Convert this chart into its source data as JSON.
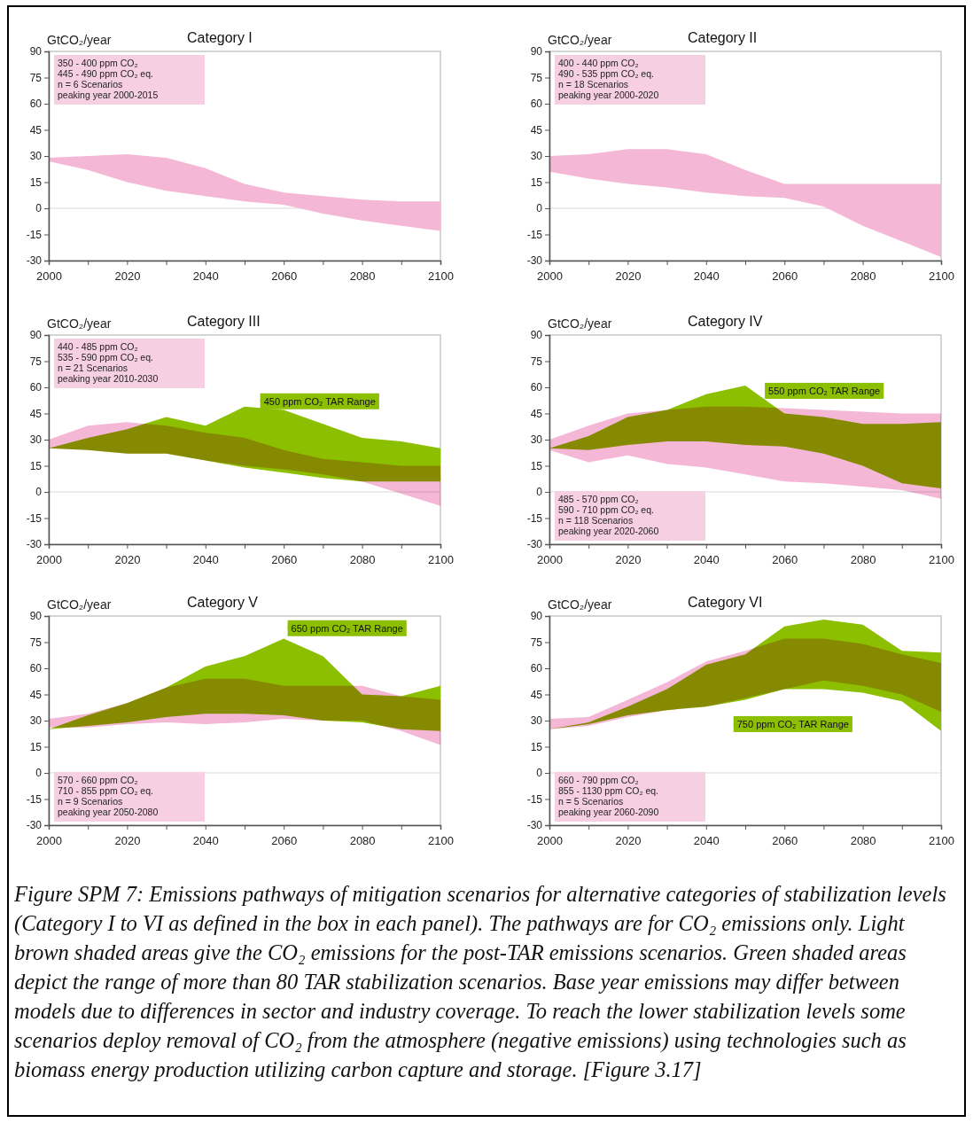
{
  "chart_data": [
    {
      "type": "area",
      "title": "Category I",
      "ylabel": "GtCO₂/year",
      "x": [
        2000,
        2010,
        2020,
        2030,
        2040,
        2050,
        2060,
        2070,
        2080,
        2090,
        2100
      ],
      "xlim": [
        2000,
        2100
      ],
      "xticks": [
        2000,
        {
          "value": 2010,
          "label": null
        },
        2020,
        {
          "value": 2030,
          "label": null
        },
        2040,
        {
          "value": 2050,
          "label": null
        },
        2060,
        {
          "value": 2070,
          "label": null
        },
        2080,
        {
          "value": 2090,
          "label": null
        },
        2100
      ],
      "ylim": [
        -30,
        90
      ],
      "yticks": [
        -30,
        -15,
        0,
        15,
        30,
        45,
        60,
        75,
        90
      ],
      "grid": false,
      "ref_lines": [
        {
          "axis": "y",
          "value": 0,
          "color": "#d9d9d9"
        }
      ],
      "annotations": [
        "350 - 400 ppm CO₂",
        "445 - 490 ppm CO₂ eq.",
        "n = 6 Scenarios",
        "peaking year 2000-2015"
      ],
      "series": [
        {
          "color": "#f4b8d6",
          "values": [
            null,
            null,
            null,
            null,
            null,
            null,
            null,
            null,
            null,
            null,
            null
          ],
          "upper": [
            29,
            30,
            31,
            29,
            23,
            14,
            9,
            7,
            5,
            4,
            4
          ],
          "lower": [
            27,
            22,
            15,
            10,
            7,
            4,
            2,
            -3,
            -7,
            -10,
            -13
          ]
        }
      ]
    },
    {
      "type": "area",
      "title": "Category II",
      "ylabel": "GtCO₂/year",
      "x": [
        2000,
        2010,
        2020,
        2030,
        2040,
        2050,
        2060,
        2070,
        2080,
        2090,
        2100
      ],
      "xlim": [
        2000,
        2100
      ],
      "xticks": [
        2000,
        {
          "value": 2010,
          "label": null
        },
        2020,
        {
          "value": 2030,
          "label": null
        },
        2040,
        {
          "value": 2050,
          "label": null
        },
        2060,
        {
          "value": 2070,
          "label": null
        },
        2080,
        {
          "value": 2090,
          "label": null
        },
        2100
      ],
      "ylim": [
        -30,
        90
      ],
      "yticks": [
        -30,
        -15,
        0,
        15,
        30,
        45,
        60,
        75,
        90
      ],
      "grid": false,
      "ref_lines": [
        {
          "axis": "y",
          "value": 0,
          "color": "#d9d9d9"
        }
      ],
      "annotations": [
        "400 - 440 ppm CO₂",
        "490 - 535 ppm CO₂ eq.",
        "n = 18 Scenarios",
        "peaking year 2000-2020"
      ],
      "series": [
        {
          "color": "#f4b8d6",
          "values": [
            null,
            null,
            null,
            null,
            null,
            null,
            null,
            null,
            null,
            null,
            null
          ],
          "upper": [
            30,
            31,
            34,
            34,
            31,
            22,
            14,
            14,
            14,
            14,
            14
          ],
          "lower": [
            21,
            17,
            14,
            12,
            9,
            7,
            6,
            1,
            -10,
            -19,
            -28
          ]
        }
      ]
    },
    {
      "type": "area",
      "title": "Category III",
      "ylabel": "GtCO₂/year",
      "x": [
        2000,
        2010,
        2020,
        2030,
        2040,
        2050,
        2060,
        2070,
        2080,
        2090,
        2100
      ],
      "xlim": [
        2000,
        2100
      ],
      "xticks": [
        2000,
        {
          "value": 2010,
          "label": null
        },
        2020,
        {
          "value": 2030,
          "label": null
        },
        2040,
        {
          "value": 2050,
          "label": null
        },
        2060,
        {
          "value": 2070,
          "label": null
        },
        2080,
        {
          "value": 2090,
          "label": null
        },
        2100
      ],
      "ylim": [
        -30,
        90
      ],
      "yticks": [
        -30,
        -15,
        0,
        15,
        30,
        45,
        60,
        75,
        90
      ],
      "grid": false,
      "ref_lines": [
        {
          "axis": "y",
          "value": 0,
          "color": "#d9d9d9"
        }
      ],
      "annotations": [
        "440 - 485 ppm CO₂",
        "535 - 590 ppm CO₂ eq.",
        "n = 21 Scenarios",
        "peaking year 2010-2030"
      ],
      "series": [
        {
          "color": "#f4b8d6",
          "values": [
            null,
            null,
            null,
            null,
            null,
            null,
            null,
            null,
            null,
            null,
            null
          ],
          "upper": [
            30,
            38,
            40,
            38,
            34,
            31,
            24,
            19,
            17,
            15,
            15
          ],
          "lower": [
            25,
            24,
            22,
            22,
            18,
            15,
            13,
            10,
            6,
            -1,
            -8
          ]
        },
        {
          "name": "450 ppm CO₂ TAR Range",
          "color": "#8cbf00",
          "values": [
            null,
            null,
            null,
            null,
            null,
            null,
            null,
            null,
            null,
            null,
            null
          ],
          "upper": [
            25,
            31,
            36,
            43,
            38,
            49,
            47,
            39,
            31,
            29,
            25
          ],
          "lower": [
            25,
            24,
            22,
            22,
            18,
            14,
            11,
            8,
            6,
            6,
            6
          ]
        }
      ]
    },
    {
      "type": "area",
      "title": "Category IV",
      "ylabel": "GtCO₂/year",
      "x": [
        2000,
        2010,
        2020,
        2030,
        2040,
        2050,
        2060,
        2070,
        2080,
        2090,
        2100
      ],
      "xlim": [
        2000,
        2100
      ],
      "xticks": [
        2000,
        {
          "value": 2010,
          "label": null
        },
        2020,
        {
          "value": 2030,
          "label": null
        },
        2040,
        {
          "value": 2050,
          "label": null
        },
        2060,
        {
          "value": 2070,
          "label": null
        },
        2080,
        {
          "value": 2090,
          "label": null
        },
        2100
      ],
      "ylim": [
        -30,
        90
      ],
      "yticks": [
        -30,
        -15,
        0,
        15,
        30,
        45,
        60,
        75,
        90
      ],
      "grid": false,
      "ref_lines": [
        {
          "axis": "y",
          "value": 0,
          "color": "#d9d9d9"
        }
      ],
      "annotations": [
        "485 - 570 ppm CO₂",
        "590 - 710 ppm CO₂ eq.",
        "n = 118 Scenarios",
        "peaking year 2020-2060"
      ],
      "series": [
        {
          "color": "#f4b8d6",
          "values": [
            null,
            null,
            null,
            null,
            null,
            null,
            null,
            null,
            null,
            null,
            null
          ],
          "upper": [
            30,
            38,
            45,
            47,
            49,
            49,
            48,
            47,
            46,
            45,
            45
          ],
          "lower": [
            24,
            17,
            21,
            16,
            14,
            10,
            6,
            5,
            3,
            1,
            -4
          ]
        },
        {
          "name": "550 ppm CO₂ TAR Range",
          "color": "#8cbf00",
          "values": [
            null,
            null,
            null,
            null,
            null,
            null,
            null,
            null,
            null,
            null,
            null
          ],
          "upper": [
            25,
            32,
            43,
            47,
            56,
            61,
            45,
            43,
            39,
            39,
            40
          ],
          "lower": [
            25,
            24,
            27,
            29,
            29,
            27,
            26,
            22,
            15,
            5,
            2
          ]
        }
      ]
    },
    {
      "type": "area",
      "title": "Category V",
      "ylabel": "GtCO₂/year",
      "x": [
        2000,
        2010,
        2020,
        2030,
        2040,
        2050,
        2060,
        2070,
        2080,
        2090,
        2100
      ],
      "xlim": [
        2000,
        2100
      ],
      "xticks": [
        2000,
        {
          "value": 2010,
          "label": null
        },
        2020,
        {
          "value": 2030,
          "label": null
        },
        2040,
        {
          "value": 2050,
          "label": null
        },
        2060,
        {
          "value": 2070,
          "label": null
        },
        2080,
        {
          "value": 2090,
          "label": null
        },
        2100
      ],
      "ylim": [
        -30,
        90
      ],
      "yticks": [
        -30,
        -15,
        0,
        15,
        30,
        45,
        60,
        75,
        90
      ],
      "grid": false,
      "ref_lines": [
        {
          "axis": "y",
          "value": 0,
          "color": "#d9d9d9"
        }
      ],
      "annotations": [
        "570 - 660 ppm CO₂",
        "710 - 855 ppm CO₂ eq.",
        "n = 9 Scenarios",
        "peaking year 2050-2080"
      ],
      "series": [
        {
          "color": "#f4b8d6",
          "values": [
            null,
            null,
            null,
            null,
            null,
            null,
            null,
            null,
            null,
            null,
            null
          ],
          "upper": [
            31,
            34,
            40,
            49,
            54,
            54,
            50,
            50,
            50,
            44,
            42
          ],
          "lower": [
            26,
            26,
            28,
            29,
            28,
            29,
            31,
            30,
            30,
            24,
            16
          ]
        },
        {
          "name": "650 ppm CO₂ TAR Range",
          "color": "#8cbf00",
          "values": [
            null,
            null,
            null,
            null,
            null,
            null,
            null,
            null,
            null,
            null,
            null
          ],
          "upper": [
            25,
            33,
            40,
            49,
            61,
            67,
            77,
            67,
            45,
            44,
            50
          ],
          "lower": [
            25,
            27,
            29,
            32,
            34,
            34,
            33,
            30,
            29,
            25,
            24
          ]
        }
      ]
    },
    {
      "type": "area",
      "title": "Category VI",
      "ylabel": "GtCO₂/year",
      "x": [
        2000,
        2010,
        2020,
        2030,
        2040,
        2050,
        2060,
        2070,
        2080,
        2090,
        2100
      ],
      "xlim": [
        2000,
        2100
      ],
      "xticks": [
        2000,
        {
          "value": 2010,
          "label": null
        },
        2020,
        {
          "value": 2030,
          "label": null
        },
        2040,
        {
          "value": 2050,
          "label": null
        },
        2060,
        {
          "value": 2070,
          "label": null
        },
        2080,
        {
          "value": 2090,
          "label": null
        },
        2100
      ],
      "ylim": [
        -30,
        90
      ],
      "yticks": [
        -30,
        -15,
        0,
        15,
        30,
        45,
        60,
        75,
        90
      ],
      "grid": false,
      "ref_lines": [
        {
          "axis": "y",
          "value": 0,
          "color": "#d9d9d9"
        }
      ],
      "annotations": [
        "660 - 790 ppm CO₂",
        "855 - 1130 ppm CO₂ eq.",
        "n = 5 Scenarios",
        "peaking year 2060-2090"
      ],
      "series": [
        {
          "color": "#f4b8d6",
          "values": [
            null,
            null,
            null,
            null,
            null,
            null,
            null,
            null,
            null,
            null,
            null
          ],
          "upper": [
            31,
            32,
            42,
            52,
            64,
            70,
            77,
            77,
            74,
            68,
            63
          ],
          "lower": [
            25,
            27,
            32,
            36,
            38,
            43,
            48,
            53,
            50,
            45,
            35
          ]
        },
        {
          "name": "750 ppm CO₂ TAR Range",
          "color": "#8cbf00",
          "values": [
            null,
            null,
            null,
            null,
            null,
            null,
            null,
            null,
            null,
            null,
            null
          ],
          "upper": [
            25,
            29,
            38,
            48,
            62,
            68,
            84,
            88,
            85,
            70,
            69
          ],
          "lower": [
            25,
            28,
            33,
            36,
            38,
            42,
            48,
            48,
            46,
            41,
            24
          ]
        }
      ]
    },
    {
      "type": "other",
      "annotations": [
        "Figure SPM 7:  Emissions pathways of mitigation scenarios for alternative categories of stabilization levels (Category I to VI as defined in the box in each panel). The pathways are for CO₂ emissions only. Light brown shaded areas give the CO₂ emissions for the post-TAR emissions scenarios.  Green shaded areas depict the range of more than 80 TAR stabilization scenarios. Base year emissions may differ between models due to differences in sector and industry coverage. To reach the lower stabilization levels some scenarios deploy removal of CO₂ from the atmosphere (negative emissions) using technologies such as biomass energy production utilizing carbon capture and storage. [Figure 3.17]"
      ]
    }
  ]
}
